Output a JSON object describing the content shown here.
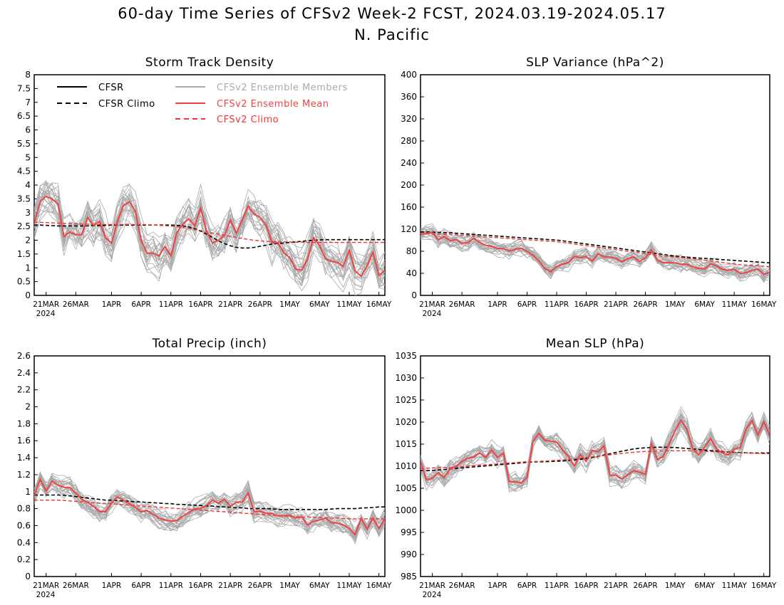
{
  "title_line1": "60-day Time Series of CFSv2 Week-2 FCST, 2024.03.19-2024.05.17",
  "title_line2": "N. Pacific",
  "colors": {
    "cfsr": "#000000",
    "members": "#aaaaaa",
    "ensemble_mean": "#ee4444",
    "cfsv2_climo": "#ee3333"
  },
  "legend": [
    {
      "label": "CFSR",
      "style": "solid",
      "color": "#000000"
    },
    {
      "label": "CFSR Climo",
      "style": "dashed",
      "color": "#000000"
    },
    {
      "label": "CFSv2 Ensemble Members",
      "style": "solid",
      "color": "#aaaaaa"
    },
    {
      "label": "CFSv2 Ensemble Mean",
      "style": "solid",
      "color": "#ee4444"
    },
    {
      "label": "CFSv2 Climo",
      "style": "dashed",
      "color": "#ee3333"
    }
  ],
  "x_tick_labels": [
    "21MAR",
    "26MAR",
    "1APR",
    "6APR",
    "11APR",
    "16APR",
    "21APR",
    "26APR",
    "1MAY",
    "6MAY",
    "11MAY",
    "16MAY"
  ],
  "x_year_label": "2024",
  "chart_data": [
    {
      "type": "line",
      "title": "Storm Track Density",
      "x_start": "2024-03-19",
      "x_end": "2024-05-17",
      "ylim": [
        0,
        8
      ],
      "yticks": [
        "0",
        "0.5",
        "1",
        "1.5",
        "2",
        "2.5",
        "3",
        "3.5",
        "4",
        "4.5",
        "5",
        "5.5",
        "6",
        "6.5",
        "7",
        "7.5",
        "8"
      ],
      "legend_position": "top",
      "series": [
        {
          "name": "CFSv2 Ensemble Mean",
          "values": [
            2.6,
            3.4,
            3.6,
            3.5,
            3.5,
            2.1,
            2.3,
            2.3,
            1.9,
            3.0,
            2.4,
            2.8,
            2.5,
            1.5,
            2.4,
            3.0,
            3.5,
            3.3,
            2.9,
            1.4,
            1.6,
            1.5,
            1.4,
            1.9,
            1.3,
            2.5,
            2.6,
            2.8,
            2.5,
            3.2,
            2.3,
            1.9,
            2.0,
            2.1,
            2.8,
            2.2,
            2.6,
            3.3,
            3.0,
            2.8,
            2.9,
            1.8,
            2.1,
            1.6,
            1.5,
            1.2,
            0.7,
            1.1,
            1.5,
            2.5,
            1.4,
            1.3,
            1.2,
            1.2,
            1.0,
            1.8,
            0.7,
            0.7,
            1.1,
            1.6,
            0.7,
            0.9
          ]
        },
        {
          "name": "CFSR Climo",
          "values": [
            2.55,
            2.55,
            2.54,
            2.53,
            2.52,
            2.52,
            2.52,
            2.52,
            2.52,
            2.52,
            2.53,
            2.53,
            2.54,
            2.55,
            2.55,
            2.55,
            2.55,
            2.55,
            2.55,
            2.55,
            2.55,
            2.55,
            2.55,
            2.55,
            2.54,
            2.52,
            2.48,
            2.42,
            2.33,
            2.22,
            2.1,
            1.98,
            1.88,
            1.8,
            1.74,
            1.72,
            1.72,
            1.74,
            1.78,
            1.82,
            1.86,
            1.88,
            1.9,
            1.92,
            1.94,
            1.96,
            1.98,
            2.0,
            2.01,
            2.02,
            2.02,
            2.02,
            2.02,
            2.02,
            2.02,
            2.02,
            2.02,
            2.02,
            2.02,
            2.02
          ]
        },
        {
          "name": "CFSv2 Climo",
          "values": [
            2.65,
            2.65,
            2.64,
            2.63,
            2.62,
            2.61,
            2.6,
            2.59,
            2.58,
            2.58,
            2.57,
            2.57,
            2.57,
            2.57,
            2.57,
            2.57,
            2.57,
            2.57,
            2.57,
            2.56,
            2.55,
            2.54,
            2.53,
            2.51,
            2.49,
            2.46,
            2.43,
            2.39,
            2.35,
            2.3,
            2.26,
            2.22,
            2.18,
            2.14,
            2.1,
            2.06,
            2.03,
            2.0,
            1.98,
            1.96,
            1.95,
            1.94,
            1.94,
            1.94,
            1.93,
            1.93,
            1.92,
            1.92,
            1.92,
            1.92,
            1.92,
            1.92,
            1.92,
            1.92,
            1.92,
            1.92,
            1.92,
            1.92,
            1.92,
            1.92
          ]
        }
      ],
      "members_spread": 1.1
    },
    {
      "type": "line",
      "title": "SLP Variance (hPa^2)",
      "x_start": "2024-03-19",
      "x_end": "2024-05-17",
      "ylim": [
        0,
        400
      ],
      "yticks": [
        "0",
        "40",
        "80",
        "120",
        "160",
        "200",
        "240",
        "280",
        "320",
        "360",
        "400"
      ],
      "series": [
        {
          "name": "CFSv2 Ensemble Mean",
          "values": [
            110,
            113,
            115,
            100,
            108,
            98,
            103,
            95,
            92,
            105,
            100,
            88,
            95,
            80,
            92,
            76,
            85,
            82,
            88,
            74,
            72,
            58,
            45,
            42,
            55,
            57,
            60,
            72,
            68,
            70,
            62,
            75,
            70,
            70,
            68,
            60,
            65,
            72,
            62,
            60,
            90,
            66,
            60,
            58,
            62,
            55,
            58,
            55,
            50,
            48,
            48,
            62,
            50,
            46,
            45,
            48,
            38,
            42,
            46,
            48,
            38,
            42
          ]
        },
        {
          "name": "CFSR Climo",
          "values": [
            115,
            115,
            114,
            114,
            113,
            112,
            111,
            110,
            109,
            108,
            107,
            106,
            105,
            104,
            103,
            102,
            101,
            100,
            98,
            96,
            94,
            92,
            90,
            88,
            86,
            84,
            82,
            80,
            78,
            76,
            74,
            72,
            70,
            69,
            68,
            67,
            66,
            65,
            64,
            63,
            62,
            61,
            60,
            59
          ]
        },
        {
          "name": "CFSv2 Climo",
          "values": [
            112,
            112,
            111,
            111,
            110,
            109,
            108,
            107,
            106,
            105,
            104,
            103,
            102,
            101,
            100,
            99,
            98,
            97,
            95,
            93,
            91,
            89,
            87,
            85,
            83,
            81,
            79,
            77,
            75,
            73,
            71,
            70,
            69,
            67,
            66,
            64,
            62,
            60,
            58,
            56,
            55,
            54,
            53,
            52
          ]
        }
      ],
      "members_spread": 22
    },
    {
      "type": "line",
      "title": "Total Precip (inch)",
      "x_start": "2024-03-19",
      "x_end": "2024-05-17",
      "ylim": [
        0,
        2.6
      ],
      "yticks": [
        "0",
        "0.2",
        "0.4",
        "0.6",
        "0.8",
        "1",
        "1.2",
        "1.4",
        "1.6",
        "1.8",
        "2",
        "2.2",
        "2.4",
        "2.6"
      ],
      "series": [
        {
          "name": "CFSv2 Ensemble Mean",
          "values": [
            0.95,
            1.15,
            1.0,
            1.13,
            1.08,
            1.05,
            1.06,
            1.0,
            0.92,
            0.88,
            0.85,
            0.78,
            0.74,
            0.8,
            0.95,
            0.92,
            0.88,
            0.84,
            0.8,
            0.74,
            0.8,
            0.7,
            0.68,
            0.66,
            0.65,
            0.66,
            0.72,
            0.76,
            0.8,
            0.8,
            0.84,
            0.9,
            0.86,
            0.92,
            0.82,
            0.88,
            0.84,
            1.05,
            0.76,
            0.78,
            0.74,
            0.76,
            0.72,
            0.7,
            0.74,
            0.7,
            0.68,
            0.72,
            0.52,
            0.74,
            0.62,
            0.72,
            0.6,
            0.64,
            0.6,
            0.56,
            0.48,
            0.72,
            0.54,
            0.7,
            0.56,
            0.68
          ]
        },
        {
          "name": "CFSR Climo",
          "values": [
            0.96,
            0.96,
            0.96,
            0.96,
            0.96,
            0.95,
            0.94,
            0.93,
            0.92,
            0.91,
            0.9,
            0.9,
            0.89,
            0.89,
            0.88,
            0.88,
            0.87,
            0.87,
            0.86,
            0.86,
            0.85,
            0.85,
            0.84,
            0.84,
            0.83,
            0.83,
            0.82,
            0.82,
            0.81,
            0.81,
            0.8,
            0.8,
            0.8,
            0.8,
            0.79,
            0.79,
            0.79,
            0.79,
            0.79,
            0.79,
            0.79,
            0.79,
            0.8,
            0.8,
            0.8,
            0.8,
            0.81,
            0.81,
            0.82,
            0.82
          ]
        },
        {
          "name": "CFSv2 Climo",
          "values": [
            0.9,
            0.9,
            0.9,
            0.89,
            0.88,
            0.87,
            0.86,
            0.85,
            0.84,
            0.83,
            0.82,
            0.81,
            0.8,
            0.79,
            0.78,
            0.77,
            0.76,
            0.75,
            0.74,
            0.73,
            0.72,
            0.71,
            0.7,
            0.7,
            0.69,
            0.69,
            0.68,
            0.68,
            0.68,
            0.68
          ]
        }
      ],
      "members_spread": 0.18
    },
    {
      "type": "line",
      "title": "Mean SLP (hPa)",
      "x_start": "2024-03-19",
      "x_end": "2024-05-17",
      "ylim": [
        985,
        1035
      ],
      "yticks": [
        "985",
        "990",
        "995",
        "1000",
        "1005",
        "1010",
        "1015",
        "1020",
        "1025",
        "1030",
        "1035"
      ],
      "series": [
        {
          "name": "CFSv2 Ensemble Mean",
          "values": [
            1011,
            1007,
            1006.5,
            1009,
            1008,
            1007,
            1010,
            1010,
            1011,
            1012,
            1011,
            1014,
            1012,
            1012,
            1014,
            1012,
            1014,
            1006.5,
            1006.5,
            1006.5,
            1006,
            1008,
            1016.5,
            1017.5,
            1016,
            1015.5,
            1016,
            1015,
            1013,
            1012,
            1010,
            1013,
            1010,
            1014,
            1013,
            1013.5,
            1015,
            1007,
            1008,
            1007,
            1007.5,
            1009,
            1009,
            1008.5,
            1008,
            1015.5,
            1011.5,
            1011.5,
            1014,
            1016.5,
            1019,
            1021,
            1018,
            1014,
            1012.5,
            1013,
            1017,
            1015.5,
            1013,
            1013,
            1012.5,
            1014,
            1013,
            1018,
            1019,
            1021.5,
            1015,
            1021,
            1017
          ]
        },
        {
          "name": "CFSR Climo",
          "values": [
            1009,
            1009,
            1009.2,
            1009.4,
            1009.6,
            1009.8,
            1010,
            1010.2,
            1010.4,
            1010.6,
            1010.8,
            1011,
            1011,
            1011.1,
            1011.2,
            1011.4,
            1011.7,
            1012.1,
            1012.6,
            1013.1,
            1013.6,
            1014,
            1014.2,
            1014.3,
            1014.3,
            1014.2,
            1014,
            1013.8,
            1013.6,
            1013.4,
            1013.2,
            1013.1,
            1013,
            1013,
            1013
          ]
        },
        {
          "name": "CFSv2 Climo",
          "values": [
            1009.5,
            1009.6,
            1009.7,
            1009.8,
            1010,
            1010.2,
            1010.4,
            1010.6,
            1010.8,
            1011,
            1011.1,
            1011.2,
            1011.4,
            1011.6,
            1011.9,
            1012.2,
            1012.5,
            1012.8,
            1013.1,
            1013.3,
            1013.4,
            1013.5,
            1013.5,
            1013.5,
            1013.4,
            1013.3,
            1013.2,
            1013.1,
            1013,
            1012.9,
            1012.8
          ]
        }
      ],
      "members_spread": 3.5
    }
  ]
}
